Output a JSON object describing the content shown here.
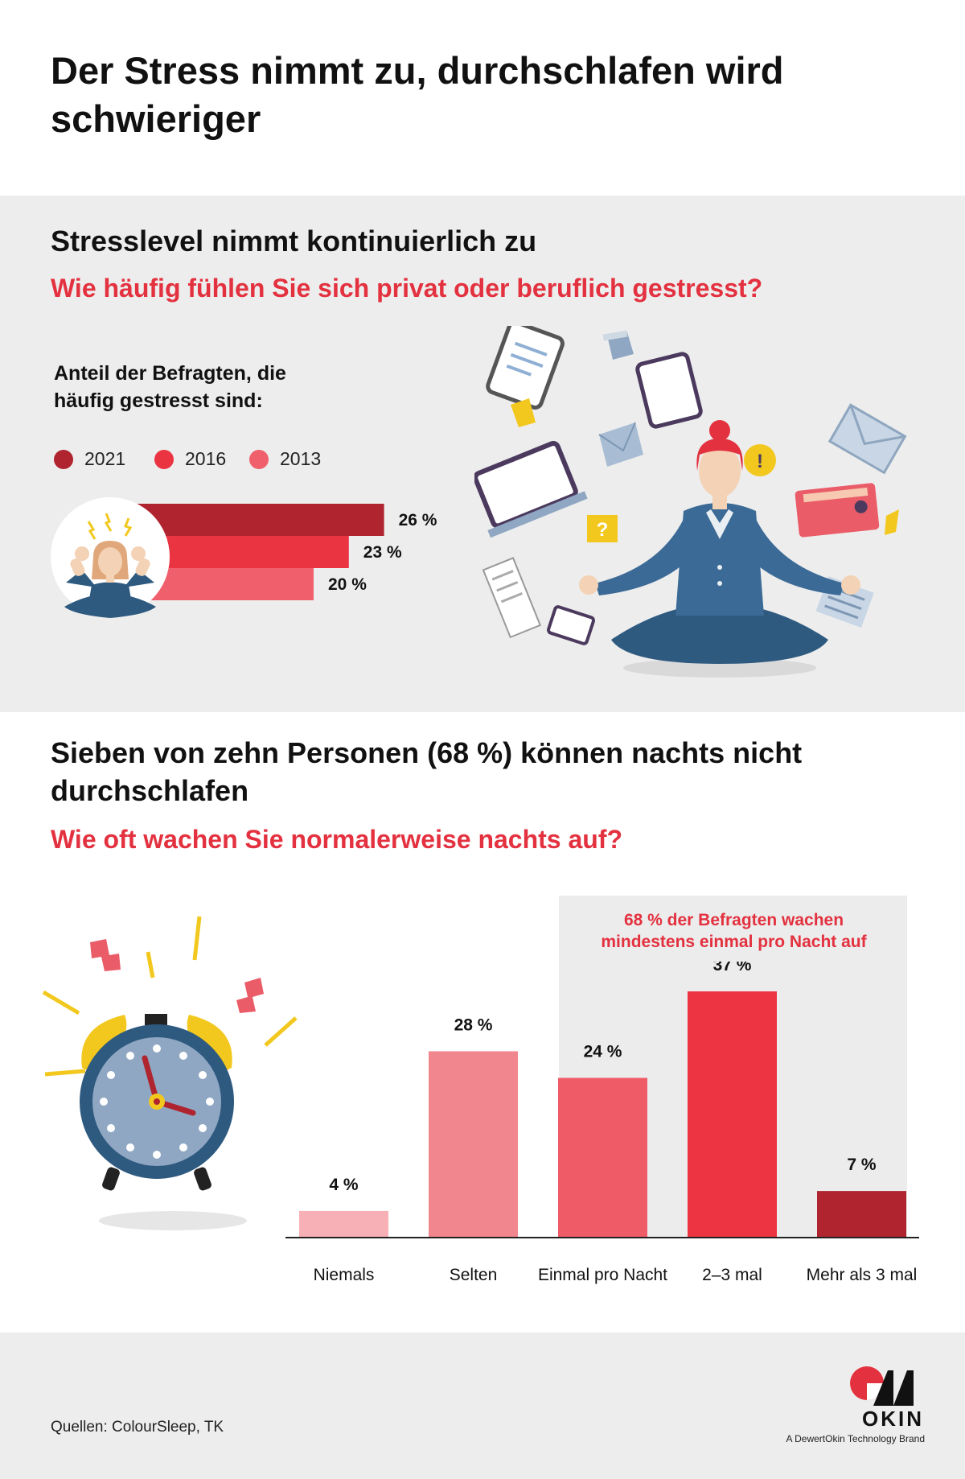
{
  "title": "Der Stress nimmt zu, durchschlafen wird schwieriger",
  "section1": {
    "heading": "Stresslevel nimmt kontinuierlich zu",
    "question": "Wie häufig fühlen Sie sich privat oder beruflich gestresst?",
    "subheading": "Anteil der Befragten, die häufig gestresst sind:"
  },
  "section2": {
    "heading": "Sieben von zehn Personen (68 %) können nachts nicht durchschlafen",
    "question": "Wie oft wachen Sie normalerweise nachts auf?",
    "highlight": "68 % der Befragten wachen mindestens einmal pro Nacht auf"
  },
  "colors": {
    "accent": "#e3313f",
    "y2021": "#b0242f",
    "y2016": "#ea3442",
    "y2013": "#f0606c",
    "niemals": "#f7b0b6",
    "selten": "#f2868e",
    "einmal": "#ef5c68",
    "zwei_drei": "#ec3442",
    "mehr": "#b0242f"
  },
  "chart_data": [
    {
      "type": "bar",
      "orientation": "horizontal",
      "categories": [
        "2021",
        "2016",
        "2013"
      ],
      "values": [
        26,
        23,
        20
      ],
      "value_labels": [
        "26 %",
        "23 %",
        "20 %"
      ],
      "legend": [
        "2021",
        "2016",
        "2013"
      ],
      "unit": "%"
    },
    {
      "type": "bar",
      "categories": [
        "Niemals",
        "Selten",
        "Einmal pro Nacht",
        "2–3 mal",
        "Mehr als 3 mal"
      ],
      "values": [
        4,
        28,
        24,
        37,
        7
      ],
      "value_labels": [
        "4 %",
        "28 %",
        "24 %",
        "37 %",
        "7 %"
      ],
      "unit": "%"
    }
  ],
  "footer": {
    "source": "Quellen: ColourSleep, TK",
    "brand": "OKIN",
    "brand_tagline": "A DewertOkin Technology Brand"
  }
}
